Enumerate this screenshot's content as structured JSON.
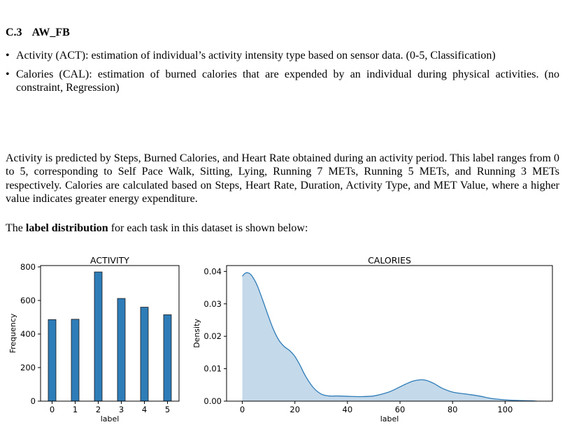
{
  "section": {
    "number": "C.3",
    "title": "AW_FB"
  },
  "bullets": [
    "Activity (ACT): estimation of individual’s activity intensity type based on sensor data. (0-5, Classification)",
    "Calories (CAL): estimation of burned calories that are expended by an individual during physical activities. (no constraint, Regression)"
  ],
  "paragraph1": "Activity is predicted by Steps, Burned Calories, and Heart Rate obtained during an activity period. This label ranges from 0 to 5, corresponding to Self Pace Walk, Sitting, Lying, Running 7 METs, Running 5 METs, and Running 3 METs respectively. Calories are calculated based on Steps, Heart Rate, Duration, Activity Type, and MET Value, where a higher value indicates greater energy expenditure.",
  "paragraph2": {
    "before": "The ",
    "bold": "label distribution",
    "after": " for each task in this dataset is shown below:"
  },
  "chart_data": [
    {
      "type": "bar",
      "title": "ACTIVITY",
      "xlabel": "label",
      "ylabel": "Frequency",
      "categories": [
        "0",
        "1",
        "2",
        "3",
        "4",
        "5"
      ],
      "values": [
        486,
        488,
        770,
        612,
        560,
        515
      ],
      "ylim": [
        0,
        808
      ],
      "yticks": [
        "0",
        "200",
        "400",
        "600",
        "800"
      ],
      "color": "#2e7cb8",
      "grid": false
    },
    {
      "type": "area",
      "title": "CALORIES",
      "xlabel": "label",
      "ylabel": "Density",
      "x": [
        0,
        1,
        2,
        3,
        4,
        5,
        6,
        8,
        10,
        12,
        14,
        16,
        18,
        20,
        22,
        24,
        27,
        30,
        33,
        36,
        40,
        45,
        50,
        55,
        58,
        62,
        65,
        68,
        70,
        73,
        76,
        80,
        85,
        90,
        95,
        100,
        105,
        110,
        112
      ],
      "values": [
        0.0385,
        0.0394,
        0.0396,
        0.0392,
        0.0382,
        0.0368,
        0.035,
        0.0306,
        0.026,
        0.0218,
        0.0187,
        0.0168,
        0.0156,
        0.0138,
        0.011,
        0.0078,
        0.0042,
        0.0022,
        0.0016,
        0.0016,
        0.0015,
        0.0014,
        0.0016,
        0.0026,
        0.0036,
        0.0052,
        0.0062,
        0.0066,
        0.0064,
        0.0054,
        0.004,
        0.0028,
        0.0022,
        0.0016,
        0.0008,
        0.0004,
        0.0002,
        0.0001,
        0.0
      ],
      "xlim": [
        -6,
        118
      ],
      "ylim": [
        0,
        0.0418
      ],
      "xticks": [
        0,
        20,
        40,
        60,
        80,
        100
      ],
      "yticks": [
        "0.00",
        "0.01",
        "0.02",
        "0.03",
        "0.04"
      ],
      "line_color": "#2e7cb8",
      "fill_color": "#c4d9ea",
      "grid": false
    }
  ]
}
